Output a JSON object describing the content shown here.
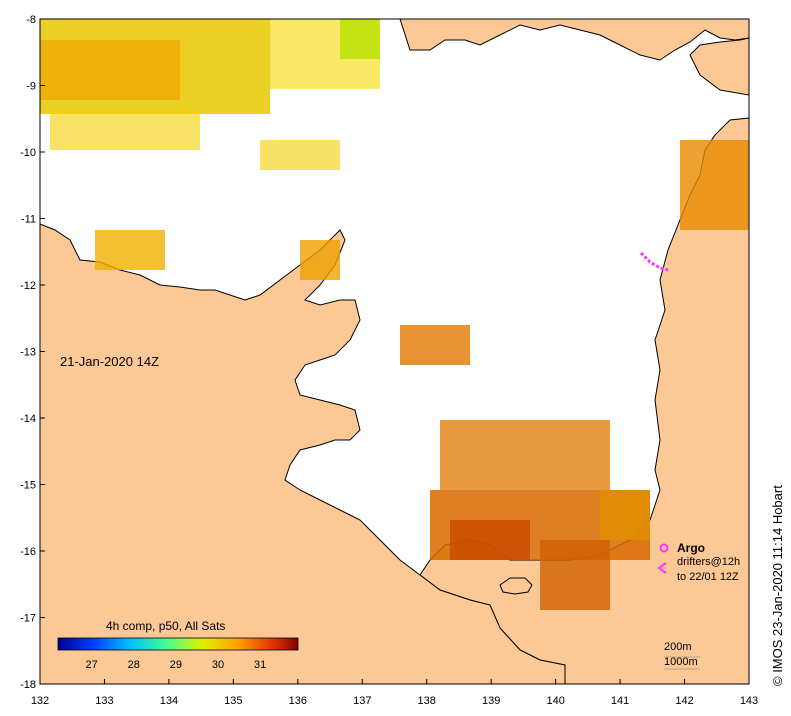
{
  "map": {
    "date_label": "21-Jan-2020 14Z",
    "copyright": "© IMOS 23-Jan-2020 11:14 Hobart",
    "colors": {
      "land": "#fbc896",
      "ocean": "#ffffff",
      "coastline": "#000000",
      "drifter": "#ff33ff"
    }
  },
  "axes": {
    "x_ticks": [
      "132",
      "133",
      "134",
      "135",
      "136",
      "137",
      "138",
      "139",
      "140",
      "141",
      "142",
      "143"
    ],
    "y_ticks": [
      "-8",
      "-9",
      "-10",
      "-11",
      "-12",
      "-13",
      "-14",
      "-15",
      "-16",
      "-17",
      "-18"
    ],
    "lon_range": [
      132,
      143
    ],
    "lat_range": [
      -18,
      -8
    ]
  },
  "colorbar": {
    "title": "4h comp, p50, All Sats",
    "ticks": [
      "27",
      "28",
      "29",
      "30",
      "31"
    ],
    "range": [
      26.2,
      31.9
    ]
  },
  "legend": {
    "argo_label": "Argo",
    "drifters_line1": "drifters@12h",
    "drifters_line2": "to 22/01 12Z",
    "depth_200": "200m",
    "depth_1000": "1000m"
  }
}
